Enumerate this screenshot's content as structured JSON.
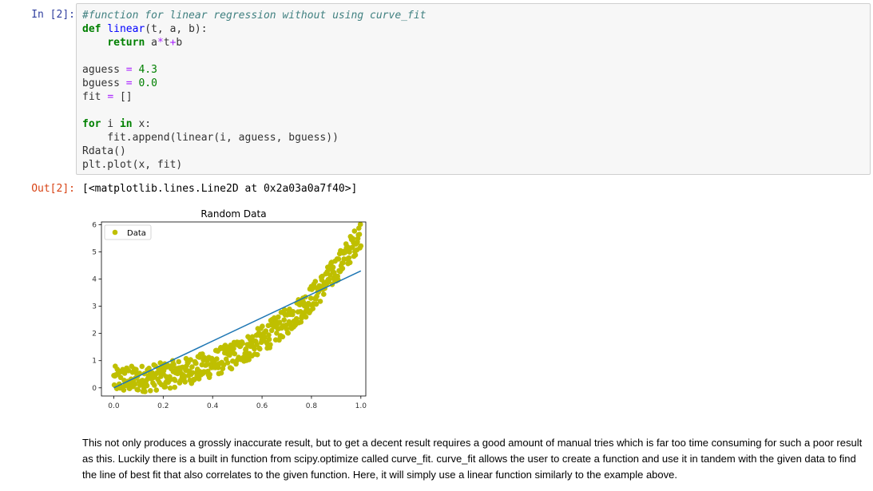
{
  "cell": {
    "in_prompt": "In [2]:",
    "out_prompt": "Out[2]:",
    "code_lines": [
      [
        {
          "t": "#function for linear regression without using curve_fit",
          "c": "cm"
        }
      ],
      [
        {
          "t": "def",
          "c": "kw"
        },
        {
          "t": " "
        },
        {
          "t": "linear",
          "c": "nm"
        },
        {
          "t": "(t, a, b):"
        }
      ],
      [
        {
          "t": "    "
        },
        {
          "t": "return",
          "c": "kw"
        },
        {
          "t": " a"
        },
        {
          "t": "*",
          "c": "op"
        },
        {
          "t": "t"
        },
        {
          "t": "+",
          "c": "op"
        },
        {
          "t": "b"
        }
      ],
      [],
      [
        {
          "t": "aguess "
        },
        {
          "t": "=",
          "c": "op"
        },
        {
          "t": " "
        },
        {
          "t": "4.3",
          "c": "num"
        }
      ],
      [
        {
          "t": "bguess "
        },
        {
          "t": "=",
          "c": "op"
        },
        {
          "t": " "
        },
        {
          "t": "0.0",
          "c": "num"
        }
      ],
      [
        {
          "t": "fit "
        },
        {
          "t": "=",
          "c": "op"
        },
        {
          "t": " []"
        }
      ],
      [],
      [
        {
          "t": "for",
          "c": "kw"
        },
        {
          "t": " i "
        },
        {
          "t": "in",
          "c": "kw"
        },
        {
          "t": " x:"
        }
      ],
      [
        {
          "t": "    fit.append(linear(i, aguess, bguess))"
        }
      ],
      [
        {
          "t": "Rdata()"
        }
      ],
      [
        {
          "t": "plt.plot(x, fit)"
        }
      ]
    ],
    "output_text": "[<matplotlib.lines.Line2D at 0x2a03a0a7f40>]"
  },
  "chart_data": {
    "type": "scatter",
    "title": "Random Data",
    "xlabel": "",
    "ylabel": "",
    "xlim": [
      -0.05,
      1.02
    ],
    "ylim": [
      -0.3,
      6.1
    ],
    "xticks": [
      "0.0",
      "0.2",
      "0.4",
      "0.6",
      "0.8",
      "1.0"
    ],
    "yticks": [
      "0",
      "1",
      "2",
      "3",
      "4",
      "5",
      "6"
    ],
    "legend": {
      "position": "top-left",
      "entries": [
        "Data"
      ]
    },
    "series": [
      {
        "name": "Data",
        "kind": "scatter",
        "color": "#bfbf00",
        "model": "0.3 + 3.4*x^2 + 2*x^4",
        "noise_range": 0.5,
        "n_points": 500,
        "x_range": [
          0,
          1
        ]
      },
      {
        "kind": "line",
        "color": "#1f77b4",
        "x": [
          0,
          1
        ],
        "y": [
          0,
          4.3
        ]
      }
    ],
    "grid": false
  },
  "markdown": {
    "text": "This not only produces a grossly inaccurate result, but to get a decent result requires a good amount of manual tries which is far too time consuming for such a poor result as this. Luckily there is a built in function from scipy.optimize called curve_fit. curve_fit allows the user to create a function and use it in tandem with the given data to find the line of best fit that also correlates to the given function. Here, it will simply use a linear function similarly to the example above."
  }
}
